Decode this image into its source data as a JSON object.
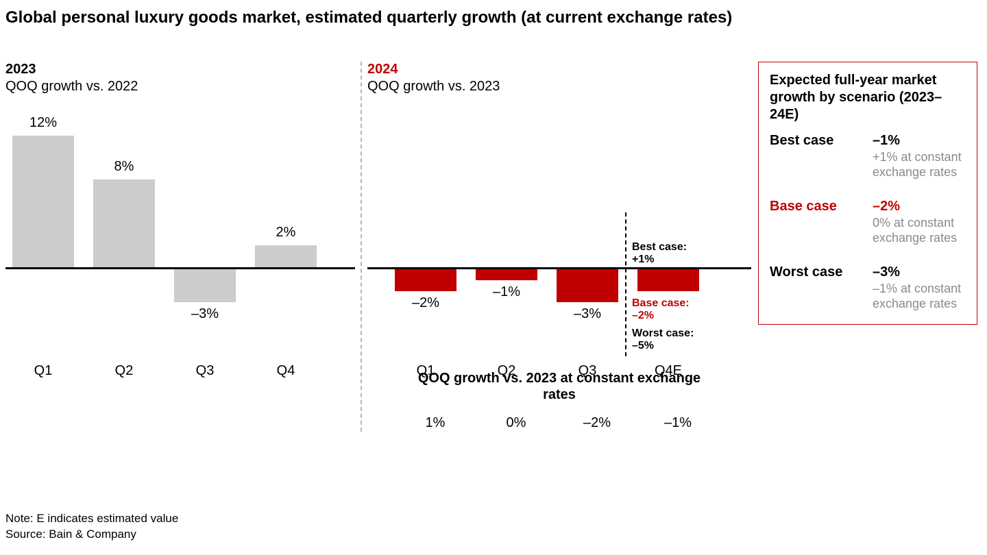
{
  "title": "Global personal luxury goods market, estimated quarterly growth (at current exchange rates)",
  "colors": {
    "text": "#000000",
    "muted": "#8a8a8a",
    "bar2023": "#cccccc",
    "bar2024": "#c00000",
    "accentRed": "#c00000",
    "axis": "#000000",
    "divider": "#b5b5b5",
    "scenarioDivider": "#000000",
    "boxBorder": "#c00000",
    "background": "#ffffff"
  },
  "layout": {
    "zeroLineTopPx": 230,
    "pxPerPct": 16,
    "barWidthPx": 90,
    "barSpacingPx": 118,
    "barStartLeftPx": 10,
    "barStartLeft2024Px": 40,
    "catLabelTopPx": 370,
    "chartAreaHeightPx": 350
  },
  "panel2023": {
    "year": "2023",
    "yearColor": "#000000",
    "subtitle": "QOQ growth vs. 2022",
    "categories": [
      "Q1",
      "Q2",
      "Q3",
      "Q4"
    ],
    "values": [
      12,
      8,
      -3,
      2
    ],
    "valueLabels": [
      "12%",
      "8%",
      "–3%",
      "2%"
    ],
    "barColor": "#cccccc"
  },
  "panel2024": {
    "year": "2024",
    "yearColor": "#c00000",
    "subtitle": "QOQ growth vs. 2023",
    "categories": [
      "Q1",
      "Q2",
      "Q3",
      "Q4E"
    ],
    "values": [
      -2,
      -1,
      -3,
      -2
    ],
    "valueLabels": [
      "–2%",
      "–1%",
      "–3%",
      ""
    ],
    "barColor": "#c00000",
    "scenarioDividerAfterIndex": 3,
    "scenarioAnnotations": [
      {
        "label": "Best case:",
        "value": "+1%",
        "color": "#000000",
        "topPx": 192
      },
      {
        "label": "Base case:",
        "value": "–2%",
        "color": "#c00000",
        "topPx": 274
      },
      {
        "label": "Worst case:",
        "value": "–5%",
        "color": "#000000",
        "topPx": 318
      }
    ],
    "constant": {
      "title": "QOQ growth vs. 2023 at constant exchange rates",
      "values": [
        "1%",
        "0%",
        "–2%",
        "–1%"
      ]
    }
  },
  "scenarioBox": {
    "title": "Expected full-year market growth by scenario (2023–24E)",
    "rows": [
      {
        "name": "Best case",
        "value": "–1%",
        "note": "+1% at constant exchange rates",
        "color": "#000000"
      },
      {
        "name": "Base case",
        "value": "–2%",
        "note": "0% at constant exchange rates",
        "color": "#c00000"
      },
      {
        "name": "Worst case",
        "value": "–3%",
        "note": "–1% at constant exchange rates",
        "color": "#000000"
      }
    ]
  },
  "footer": {
    "note": "Note: E indicates estimated value",
    "source": "Source: Bain & Company"
  }
}
